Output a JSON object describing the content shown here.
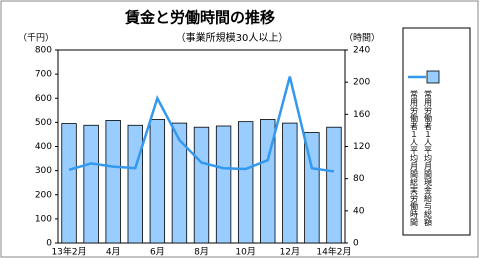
{
  "chart_data": {
    "type": "bar_line",
    "title": "賃金と労働時間の推移",
    "subtitle": "（事業所規模30人以上）",
    "y_label": "（千円）",
    "y2_label": "（時間）",
    "categories": [
      "13年2月",
      null,
      "4月",
      null,
      "6月",
      null,
      "8月",
      null,
      "10月",
      null,
      "12月",
      null,
      "14年2月"
    ],
    "series": [
      {
        "name": "常用労働者１人平均月間現金給与総額",
        "type": "bar",
        "color": "#99ccff",
        "values": [
          495,
          488,
          508,
          488,
          512,
          497,
          480,
          485,
          503,
          512,
          497,
          458,
          480
        ]
      },
      {
        "name": "常用労働者１人平均月間総実労働時間",
        "type": "line",
        "axis": "y2",
        "color": "#3399ee",
        "values": [
          91,
          99,
          95,
          93,
          180,
          128,
          100,
          93,
          92,
          103,
          207,
          93,
          89
        ]
      }
    ],
    "ylim": [
      0,
      800
    ],
    "yticks": [
      0,
      100,
      200,
      300,
      400,
      500,
      600,
      700,
      800
    ],
    "y2lim": [
      0,
      240
    ],
    "y2ticks": [
      0,
      40,
      80,
      120,
      160,
      200,
      240
    ],
    "grid": false
  }
}
